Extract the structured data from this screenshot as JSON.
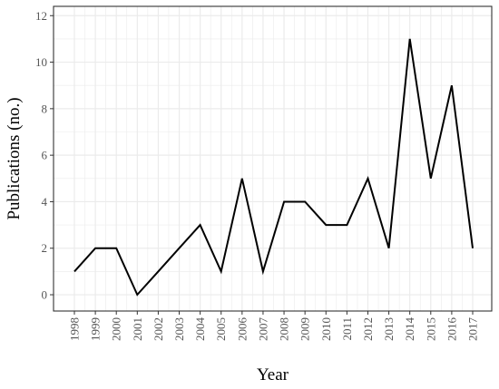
{
  "chart_data": {
    "type": "line",
    "title": "",
    "xlabel": "Year",
    "ylabel": "Publications (no.)",
    "x": [
      "1998",
      "1999",
      "2000",
      "2001",
      "2002",
      "2003",
      "2004",
      "2005",
      "2006",
      "2007",
      "2008",
      "2009",
      "2010",
      "2011",
      "2012",
      "2013",
      "2014",
      "2015",
      "2016",
      "2017"
    ],
    "series": [
      {
        "values": [
          1,
          2,
          2,
          0,
          1,
          2,
          3,
          1,
          5,
          1,
          4,
          4,
          3,
          3,
          5,
          2,
          11,
          5,
          9,
          2
        ]
      }
    ],
    "yticks": [
      "0",
      "2",
      "4",
      "6",
      "8",
      "10",
      "12"
    ],
    "ylim": [
      -0.7,
      12.4
    ],
    "grid": true,
    "legend": "none",
    "colors": {
      "line": "#000000",
      "grid": "#ebebeb",
      "border": "#333333",
      "tick_text": "#555555"
    }
  }
}
